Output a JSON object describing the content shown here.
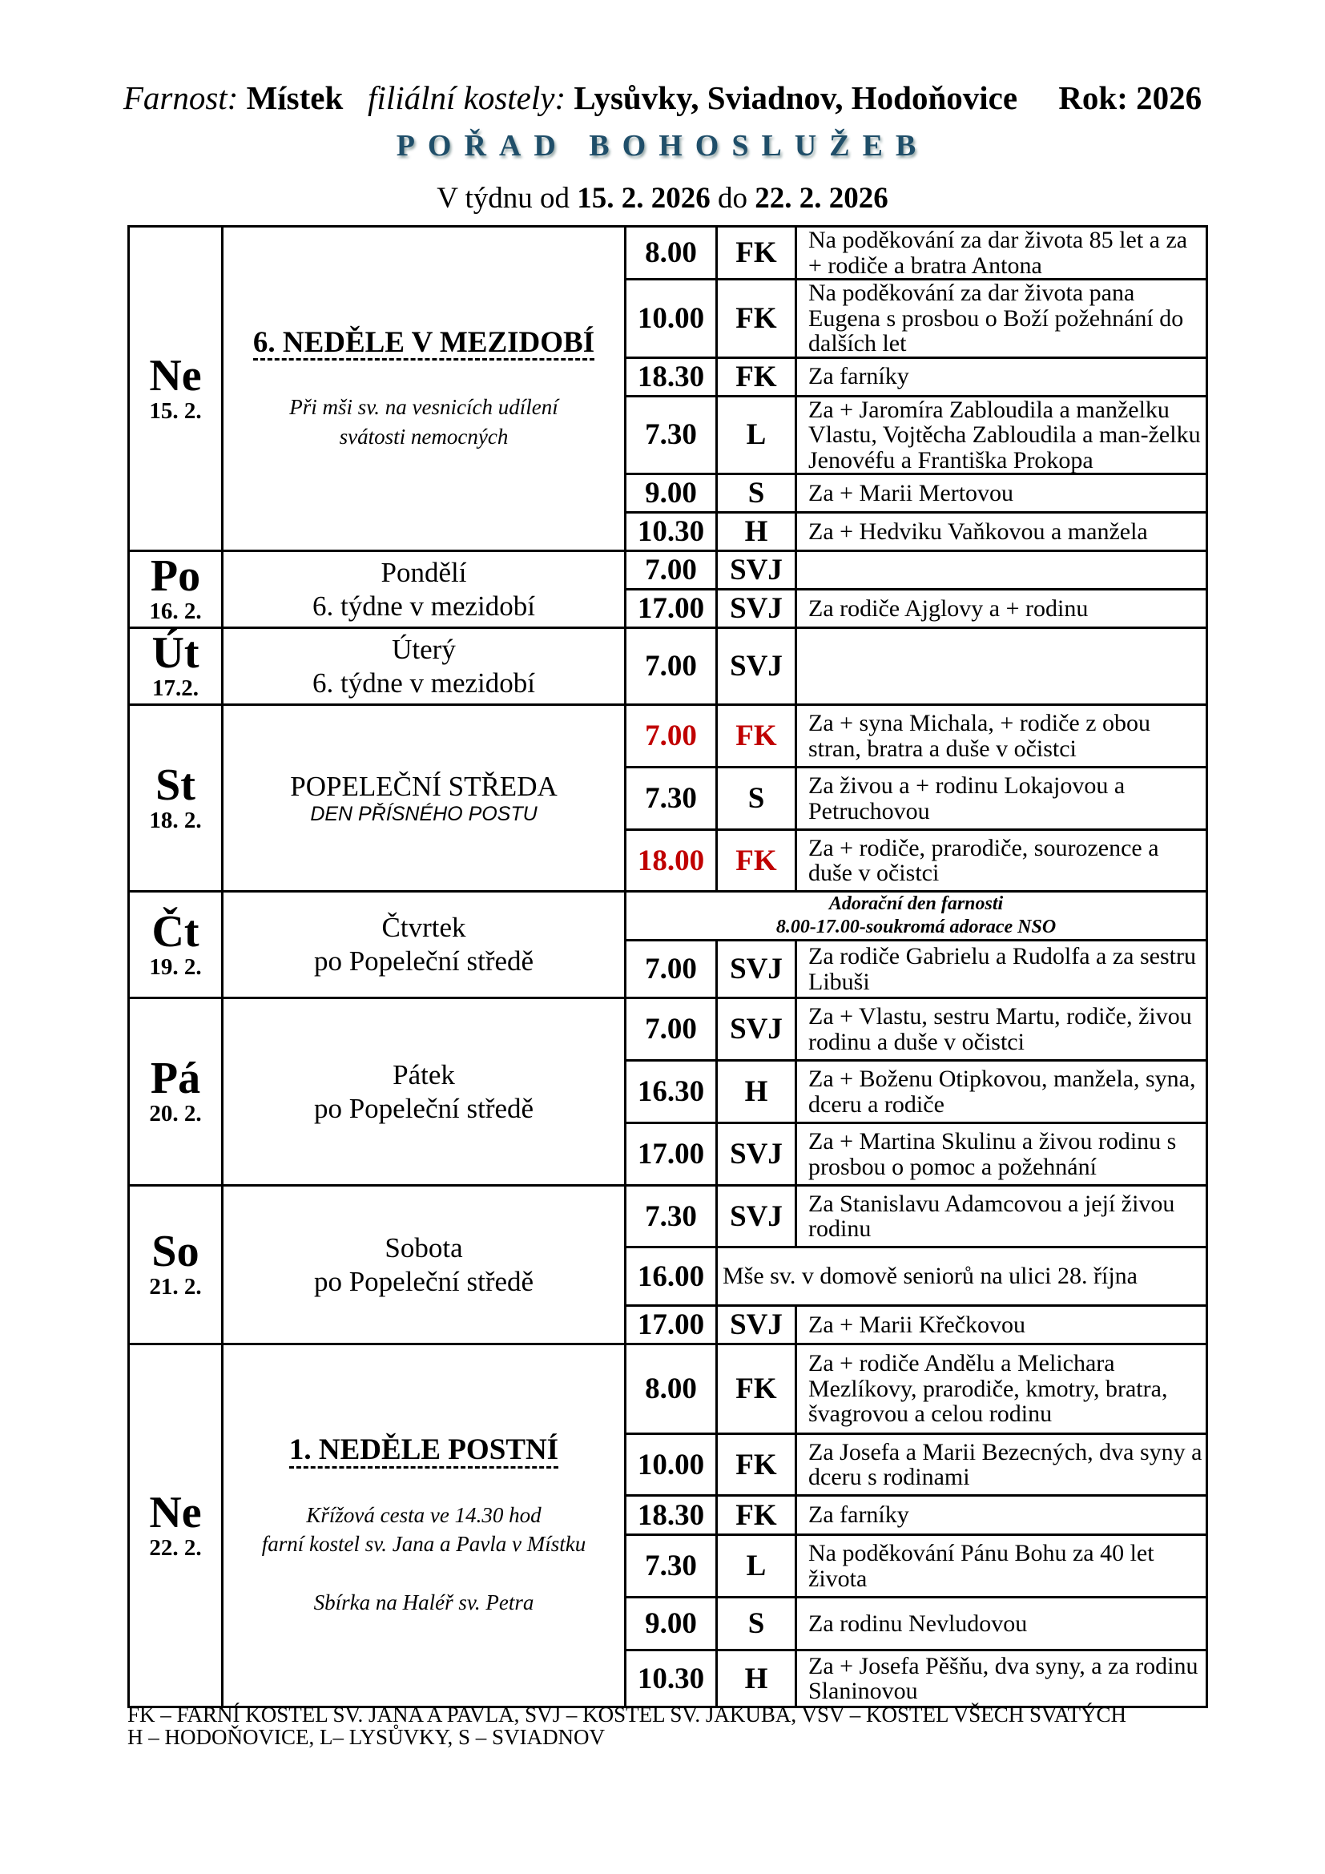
{
  "header": {
    "parish_label": "Farnost:",
    "parish": "Místek",
    "filial_label": "filiální kostely:",
    "filials": "Lysůvky, Sviadnov, Hodoňovice",
    "year_label": "Rok: 2026",
    "title": "POŘAD BOHOSLUŽEB",
    "week_prefix": "V týdnu od",
    "week_from": "15. 2. 2026",
    "week_mid": "do",
    "week_to": "22. 2. 2026"
  },
  "days": [
    {
      "abbr": "Ne",
      "date": "15. 2.",
      "title": "6. NEDĚLE V MEZIDOBÍ",
      "notes": [
        "Při mši sv. na vesnicích udílení",
        "svátosti nemocných"
      ],
      "masses": [
        {
          "time": "8.00",
          "place": "FK",
          "intention": "Na poděkování za dar života 85 let a za + rodiče a bratra Antona"
        },
        {
          "time": "10.00",
          "place": "FK",
          "intention": "Na poděkování za dar života pana Eugena s prosbou o Boží požehnání do dalších let"
        },
        {
          "time": "18.30",
          "place": "FK",
          "intention": "Za farníky"
        },
        {
          "time": "7.30",
          "place": "L",
          "intention": "Za + Jaromíra Zabloudila a manželku Vlastu, Vojtěcha Zabloudila a man-želku Jenovéfu a Františka Prokopa"
        },
        {
          "time": "9.00",
          "place": "S",
          "intention": "Za + Marii Mertovou"
        },
        {
          "time": "10.30",
          "place": "H",
          "intention": "Za + Hedviku Vaňkovou a manžela"
        }
      ]
    },
    {
      "abbr": "Po",
      "date": "16. 2.",
      "lines": [
        "Pondělí",
        "6. týdne v mezidobí"
      ],
      "masses": [
        {
          "time": "7.00",
          "place": "SVJ",
          "intention": ""
        },
        {
          "time": "17.00",
          "place": "SVJ",
          "intention": "Za rodiče Ajglovy a + rodinu"
        }
      ]
    },
    {
      "abbr": "Út",
      "date": "17.2.",
      "lines": [
        "Úterý",
        "6. týdne v mezidobí"
      ],
      "masses": [
        {
          "time": "7.00",
          "place": "SVJ",
          "intention": ""
        }
      ]
    },
    {
      "abbr": "St",
      "date": "18. 2.",
      "lines": [
        "POPELEČNÍ STŘEDA"
      ],
      "sub": "DEN PŘÍSNÉHO POSTU",
      "masses": [
        {
          "time": "7.00",
          "place": "FK",
          "intention": "Za + syna Michala, + rodiče z obou stran, bratra a duše v očistci",
          "red": true
        },
        {
          "time": "7.30",
          "place": "S",
          "intention": "Za živou a + rodinu Lokajovou a Petruchovou"
        },
        {
          "time": "18.00",
          "place": "FK",
          "intention": "Za + rodiče, prarodiče, sourozence a duše v očistci",
          "red": true
        }
      ]
    },
    {
      "abbr": "Čt",
      "date": "19. 2.",
      "lines": [
        "Čtvrtek",
        "po Popeleční středě"
      ],
      "announcement": [
        "Adorační den farnosti",
        "8.00-17.00-soukromá adorace NSO"
      ],
      "masses": [
        {
          "time": "7.00",
          "place": "SVJ",
          "intention": "Za rodiče Gabrielu a Rudolfa a za sestru Libuši"
        }
      ]
    },
    {
      "abbr": "Pá",
      "date": "20. 2.",
      "lines": [
        "Pátek",
        "po Popeleční středě"
      ],
      "masses": [
        {
          "time": "7.00",
          "place": "SVJ",
          "intention": "Za + Vlastu, sestru Martu, rodiče, živou rodinu a duše v očistci"
        },
        {
          "time": "16.30",
          "place": "H",
          "intention": "Za + Boženu Otipkovou, manžela, syna, dceru a rodiče"
        },
        {
          "time": "17.00",
          "place": "SVJ",
          "intention": "Za + Martina Skulinu a živou rodinu s prosbou o pomoc a požehnání"
        }
      ]
    },
    {
      "abbr": "So",
      "date": "21. 2.",
      "lines": [
        "Sobota",
        "po Popeleční středě"
      ],
      "masses": [
        {
          "time": "7.30",
          "place": "SVJ",
          "intention": "Za Stanislavu Adamcovou a její živou rodinu"
        },
        {
          "time": "16.00",
          "place": "",
          "intention": "Mše sv. v domově seniorů na ulici 28. října",
          "merged": true
        },
        {
          "time": "17.00",
          "place": "SVJ",
          "intention": "Za + Marii Křečkovou"
        }
      ]
    },
    {
      "abbr": "Ne",
      "date": "22. 2.",
      "title": "1. NEDĚLE POSTNÍ",
      "notes": [
        "Křížová cesta ve 14.30  hod",
        "farní kostel sv. Jana a Pavla v Místku",
        "",
        "Sbírka na Haléř sv. Petra"
      ],
      "masses": [
        {
          "time": "8.00",
          "place": "FK",
          "intention": "Za + rodiče Andělu a Melichara Mezlíkovy, prarodiče, kmotry, bratra, švagrovou a celou rodinu"
        },
        {
          "time": "10.00",
          "place": "FK",
          "intention": "Za Josefa a Marii Bezecných, dva syny a dceru s rodinami"
        },
        {
          "time": "18.30",
          "place": "FK",
          "intention": "Za farníky"
        },
        {
          "time": "7.30",
          "place": "L",
          "intention": "Na poděkování Pánu Bohu za 40 let života"
        },
        {
          "time": "9.00",
          "place": "S",
          "intention": "Za rodinu Nevludovou"
        },
        {
          "time": "10.30",
          "place": "H",
          "intention": "Za + Josefa Pěšňu, dva syny, a za rodinu Slaninovou"
        }
      ]
    }
  ],
  "footer": [
    "FK – FARNÍ KOSTEL SV. JANA A PAVLA, SVJ – KOSTEL SV. JAKUBA, VSV – KOSTEL VŠECH SVATÝCH",
    "H – HODOŇOVICE, L– LYSŮVKY, S – SVIADNOV"
  ],
  "colors": {
    "title": "#1f4e69",
    "highlight": "#c00000"
  }
}
